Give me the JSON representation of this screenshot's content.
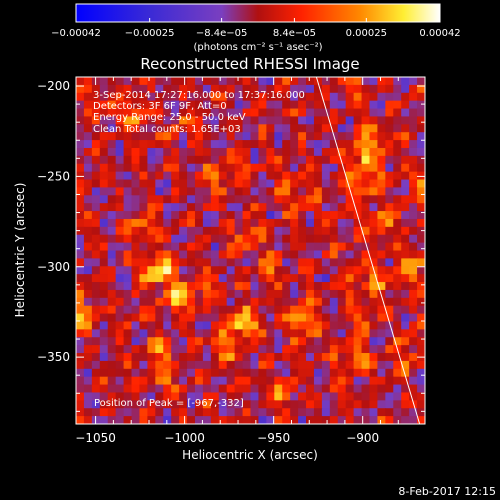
{
  "chart_data": {
    "type": "heatmap",
    "title": "Reconstructed RHESSI Image",
    "xlabel": "Heliocentric X (arcsec)",
    "ylabel": "Heliocentric Y (arcsec)",
    "xlim": [
      -1061,
      -865
    ],
    "ylim": [
      -387,
      -195
    ],
    "x_ticks": [
      -1050,
      -1000,
      -950,
      -900
    ],
    "x_tick_labels": [
      "−1050",
      "−1000",
      "−950",
      "−900"
    ],
    "y_ticks": [
      -200,
      -250,
      -300,
      -350
    ],
    "y_tick_labels": [
      "−200",
      "−250",
      "−300",
      "−350"
    ],
    "colorbar": {
      "min": -0.00042,
      "max": 0.00042,
      "tick_values": [
        -0.00042,
        -0.00025,
        -8.4e-05,
        8.4e-05,
        0.00025,
        0.00042
      ],
      "tick_labels": [
        "−0.00042",
        "−0.00025",
        "−8.4e−05",
        "8.4e−05",
        "0.00025",
        "0.00042"
      ],
      "unit_label": "(photons cm⁻² s⁻¹ asec⁻²)",
      "colors": [
        "#0000ff",
        "#3a2ad6",
        "#7a3fc0",
        "#b01010",
        "#ff2200",
        "#ff8800",
        "#ffee33",
        "#ffffff"
      ]
    },
    "annotations": [
      "3-Sep-2014 17:27:16.000 to 17:37:16.000",
      "Detectors: 3F 6F 9F, Att=0",
      "Energy Range: 25.0 - 50.0 keV",
      "Clean    Total counts: 1.65E+03"
    ],
    "peak_label": "Position of Peak = [-967,-332]",
    "peak_position": [
      -967,
      -332
    ],
    "limb_line": [
      [
        -926,
        -195
      ],
      [
        -868,
        -387
      ]
    ]
  },
  "footer": {
    "date": "8-Feb-2017 12:15"
  }
}
